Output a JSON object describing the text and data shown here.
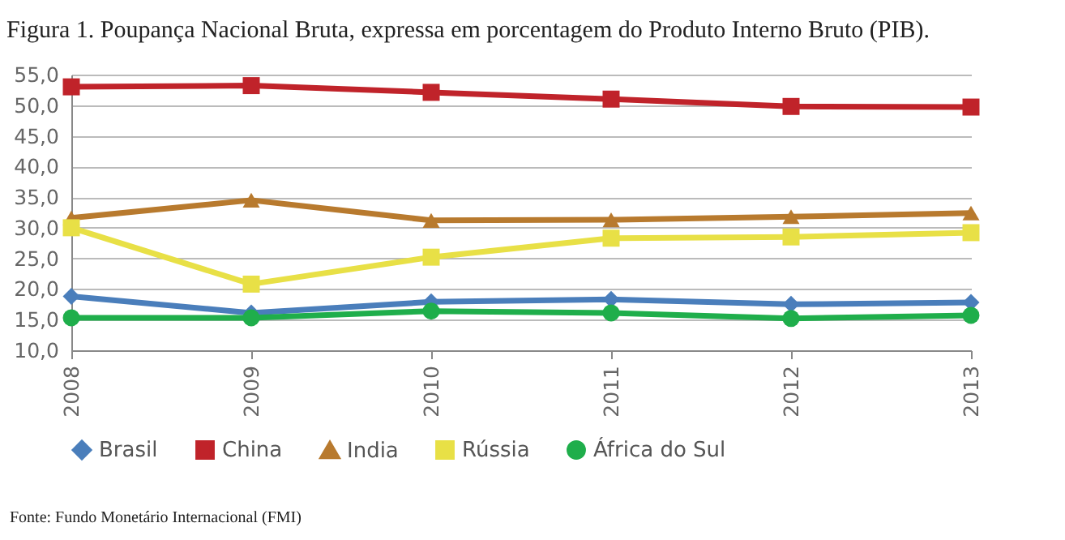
{
  "chart_data": {
    "type": "line",
    "title": "Figura 1. Poupança Nacional Bruta, expressa em porcentagem do Produto Interno Bruto (PIB).",
    "categories": [
      "2008",
      "2009",
      "2010",
      "2011",
      "2012",
      "2013"
    ],
    "series": [
      {
        "name": "Brasil",
        "color": "#4a7ebb",
        "marker": "diamond",
        "values": [
          18.8,
          16.1,
          17.9,
          18.3,
          17.5,
          17.8
        ]
      },
      {
        "name": "China",
        "color": "#c0232a",
        "marker": "square",
        "values": [
          53.0,
          53.2,
          52.1,
          51.0,
          49.8,
          49.7
        ]
      },
      {
        "name": "India",
        "color": "#b87a2e",
        "marker": "triangle",
        "values": [
          31.6,
          34.5,
          31.2,
          31.3,
          31.8,
          32.4
        ]
      },
      {
        "name": "Rússia",
        "color": "#e8e046",
        "marker": "square",
        "values": [
          30.0,
          20.8,
          25.2,
          28.3,
          28.5,
          29.2
        ]
      },
      {
        "name": "África do Sul",
        "color": "#1fae4b",
        "marker": "circle",
        "values": [
          15.3,
          15.3,
          16.4,
          16.1,
          15.2,
          15.7
        ]
      }
    ],
    "ylim": [
      10,
      55
    ],
    "yticks": [
      {
        "value": 10,
        "label": "10,0"
      },
      {
        "value": 15,
        "label": "15,0"
      },
      {
        "value": 20,
        "label": "20,0"
      },
      {
        "value": 25,
        "label": "25,0"
      },
      {
        "value": 30,
        "label": "30,0"
      },
      {
        "value": 35,
        "label": "35,0"
      },
      {
        "value": 40,
        "label": "40,0"
      },
      {
        "value": 45,
        "label": "45,0"
      },
      {
        "value": 50,
        "label": "50,0"
      },
      {
        "value": 55,
        "label": "55,0"
      }
    ],
    "grid": "y",
    "legend": "bottom",
    "line_style": "solid",
    "annotations": [
      "Fonte: Fundo Monetário Internacional (FMI)"
    ]
  }
}
